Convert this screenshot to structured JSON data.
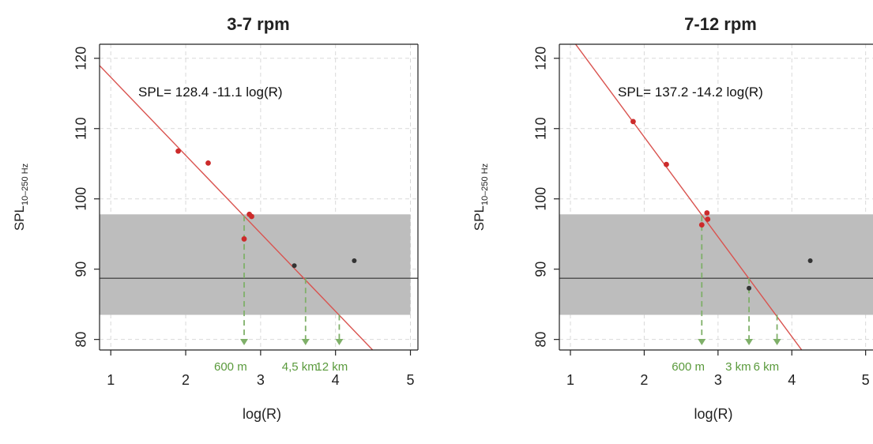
{
  "chart_data": [
    {
      "type": "scatter",
      "title": "3-7 rpm",
      "xlabel": "log(R)",
      "ylabel_main": "SPL",
      "ylabel_sub": "10–250 Hz",
      "xlim": [
        0.85,
        5.1
      ],
      "ylim": [
        78.5,
        122
      ],
      "xticks": [
        1,
        2,
        3,
        4,
        5
      ],
      "yticks": [
        80,
        90,
        100,
        110,
        120
      ],
      "grid": true,
      "equation": "SPL= 128.4 -11.1 log(R)",
      "fit": {
        "intercept": 128.4,
        "slope": -11.1,
        "color": "#d9534f"
      },
      "band": {
        "ymin": 83.5,
        "ymax": 97.8,
        "xmin": 0.85,
        "xmax": 5.0,
        "color": "#bdbdbd"
      },
      "hline": {
        "y": 88.7,
        "color": "#555555"
      },
      "points_red": [
        {
          "x": 1.9,
          "y": 106.8
        },
        {
          "x": 2.3,
          "y": 105.1
        },
        {
          "x": 2.78,
          "y": 94.3
        },
        {
          "x": 2.85,
          "y": 97.8
        },
        {
          "x": 2.88,
          "y": 97.5
        }
      ],
      "points_dark": [
        {
          "x": 3.45,
          "y": 90.5
        },
        {
          "x": 4.25,
          "y": 91.2
        }
      ],
      "markers": [
        {
          "x": 2.78,
          "y_top": 97.6,
          "label": "600 m"
        },
        {
          "x": 3.6,
          "y_top": 88.7,
          "label": "4,5 km"
        },
        {
          "x": 4.05,
          "y_top": 83.5,
          "label": "12 km"
        }
      ]
    },
    {
      "type": "scatter",
      "title": "7-12 rpm",
      "xlabel": "log(R)",
      "ylabel_main": "SPL",
      "ylabel_sub": "10–250 Hz",
      "xlim": [
        0.85,
        5.1
      ],
      "ylim": [
        78.5,
        122
      ],
      "xticks": [
        1,
        2,
        3,
        4,
        5
      ],
      "yticks": [
        80,
        90,
        100,
        110,
        120
      ],
      "grid": true,
      "equation": "SPL= 137.2 -14.2 log(R)",
      "fit": {
        "intercept": 137.2,
        "slope": -14.2,
        "color": "#d9534f"
      },
      "band": {
        "ymin": 83.5,
        "ymax": 97.8,
        "xmin": 0.85,
        "xmax": 5.1,
        "color": "#bdbdbd"
      },
      "hline": {
        "y": 88.7,
        "color": "#555555"
      },
      "points_red": [
        {
          "x": 1.85,
          "y": 111.0
        },
        {
          "x": 2.3,
          "y": 104.9
        },
        {
          "x": 2.78,
          "y": 96.3
        },
        {
          "x": 2.85,
          "y": 98.0
        },
        {
          "x": 2.86,
          "y": 97.1
        }
      ],
      "points_dark": [
        {
          "x": 3.42,
          "y": 87.3
        },
        {
          "x": 4.25,
          "y": 91.2
        }
      ],
      "markers": [
        {
          "x": 2.78,
          "y_top": 97.6,
          "label": "600 m"
        },
        {
          "x": 3.42,
          "y_top": 88.7,
          "label": "3 km"
        },
        {
          "x": 3.8,
          "y_top": 83.5,
          "label": "6 km"
        }
      ]
    }
  ]
}
